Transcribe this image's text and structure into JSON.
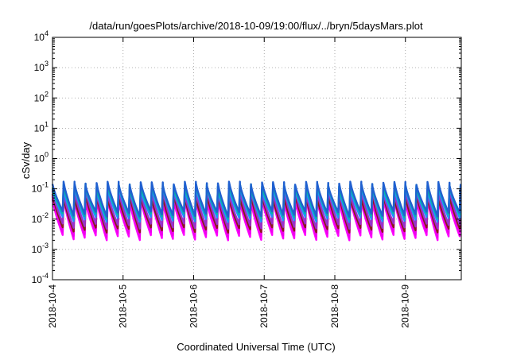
{
  "chart_data": {
    "type": "line",
    "title": "/data/run/goesPlots/archive/2018-10-09/19:00/flux/../bryn/5daysMars.plot",
    "xlabel": "Coordinated Universal Time (UTC)",
    "ylabel": "cSv/day",
    "yscale": "log",
    "ylim": [
      0.0001,
      10000
    ],
    "y_ticks": [
      {
        "value": 0.0001,
        "base": "10",
        "exp": "-4"
      },
      {
        "value": 0.001,
        "base": "10",
        "exp": "-3"
      },
      {
        "value": 0.01,
        "base": "10",
        "exp": "-2"
      },
      {
        "value": 0.1,
        "base": "10",
        "exp": "-1"
      },
      {
        "value": 1,
        "base": "10",
        "exp": "0"
      },
      {
        "value": 10,
        "base": "10",
        "exp": "1"
      },
      {
        "value": 100,
        "base": "10",
        "exp": "2"
      },
      {
        "value": 1000,
        "base": "10",
        "exp": "3"
      },
      {
        "value": 10000,
        "base": "10",
        "exp": "4"
      }
    ],
    "x_start": "2018-10-04T00:00",
    "x_end": "2018-10-09T19:00",
    "x_ticks": [
      "2018-10-4",
      "2018-10-5",
      "2018-10-6",
      "2018-10-7",
      "2018-10-8",
      "2018-10-9"
    ],
    "grid": true,
    "legend": "none",
    "series_colors": [
      "#ff00ff",
      "#ee00ee",
      "#8b1a1a",
      "#9932cc",
      "#1e90ff",
      "#00c0a0",
      "#2060d0"
    ],
    "series_ranges": [
      {
        "low": 0.0025,
        "high": 0.045
      },
      {
        "low": 0.0032,
        "high": 0.05
      },
      {
        "low": 0.0045,
        "high": 0.06
      },
      {
        "low": 0.006,
        "high": 0.085
      },
      {
        "low": 0.01,
        "high": 0.11
      },
      {
        "low": 0.013,
        "high": 0.13
      },
      {
        "low": 0.015,
        "high": 0.15
      }
    ],
    "cycles_per_day": 6.4,
    "notes": "Each series rises sharply to its high value then decays toward its low value within every cycle."
  }
}
